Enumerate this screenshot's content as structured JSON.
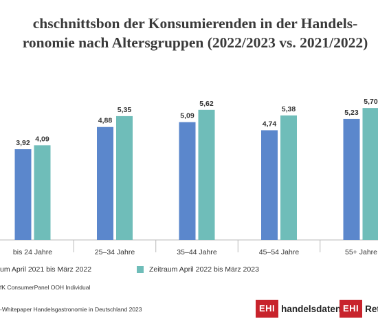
{
  "title_line1": "chschnittsbon der Konsumierenden in der Handels-",
  "title_line2": "ronomie nach Altersgruppen (2022/2023 vs. 2021/2022)",
  "colors": {
    "series1": "#5b87cc",
    "series2": "#6fbdb9",
    "axis": "#b8b8b8",
    "logo_red": "#c8232c"
  },
  "chart_data": {
    "type": "bar",
    "categories": [
      "bis 24 Jahre",
      "25–34 Jahre",
      "35–44 Jahre",
      "45–54 Jahre",
      "55+ Jahre"
    ],
    "series": [
      {
        "name": "um April 2021 bis März 2022",
        "values": [
          3.92,
          4.88,
          5.09,
          4.74,
          5.23
        ],
        "labels": [
          "3,92",
          "4,88",
          "5,09",
          "4,74",
          "5,23"
        ]
      },
      {
        "name": "Zeitraum April 2022 bis März 2023",
        "values": [
          4.09,
          5.35,
          5.62,
          5.38,
          5.7
        ],
        "labels": [
          "4,09",
          "5,35",
          "5,62",
          "5,38",
          "5,70"
        ]
      }
    ],
    "ylim": [
      0,
      7.1
    ]
  },
  "legend": {
    "item1": "um April 2021 bis März 2022",
    "item2": "Zeitraum April 2022 bis März 2023"
  },
  "source": "fK ConsumerPanel OOH Individual",
  "footnote": "-Whitepaper Handelsgastronomie in Deutschland 2023",
  "logos": {
    "logo1_mark": "EHI",
    "logo1_word": "handelsdaten.de",
    "logo2_mark": "EHI",
    "logo2_word": "Retail"
  }
}
